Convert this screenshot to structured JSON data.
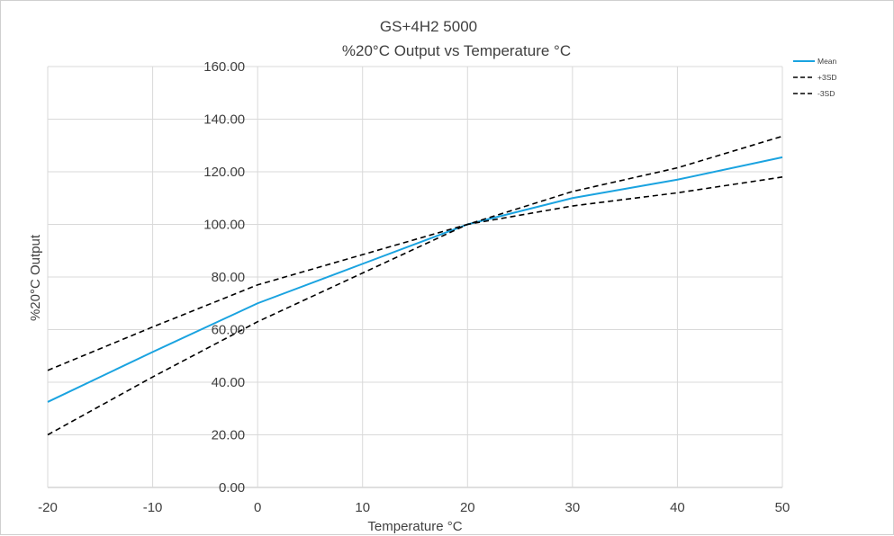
{
  "chart_data": {
    "type": "line",
    "title": "GS+4H2 5000",
    "subtitle": "%20°C Output vs Temperature °C",
    "xlabel": "Temperature °C",
    "ylabel": "%20°C Output",
    "x": [
      -20,
      -10,
      0,
      10,
      20,
      30,
      40,
      50
    ],
    "x_ticks": [
      "-20",
      "-10",
      "0",
      "10",
      "20",
      "30",
      "40",
      "50"
    ],
    "y_ticks": [
      "0.00",
      "20.00",
      "40.00",
      "60.00",
      "80.00",
      "100.00",
      "120.00",
      "140.00",
      "160.00"
    ],
    "xlim": [
      -20,
      50
    ],
    "ylim": [
      0,
      160
    ],
    "grid": true,
    "legend_position": "top-right",
    "series": [
      {
        "name": "Mean",
        "color": "#1aa3e0",
        "dash": "solid",
        "values": [
          32.5,
          51.5,
          70,
          85,
          100,
          110,
          117,
          125.5
        ]
      },
      {
        "name": "+3SD",
        "color": "#000000",
        "dash": "dashed",
        "values": [
          44.5,
          61,
          77,
          88.5,
          100,
          112.5,
          121.5,
          133.5
        ]
      },
      {
        "name": "-3SD",
        "color": "#000000",
        "dash": "dashed",
        "values": [
          20,
          42,
          63,
          81.5,
          100,
          107,
          112,
          118
        ]
      }
    ]
  }
}
